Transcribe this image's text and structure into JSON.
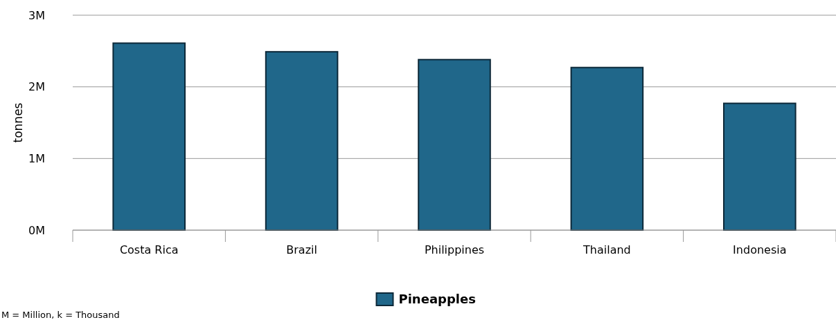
{
  "chart_data": {
    "type": "bar",
    "ylabel": "tonnes",
    "categories": [
      "Costa Rica",
      "Brazil",
      "Philippines",
      "Thailand",
      "Indonesia"
    ],
    "series": [
      {
        "name": "Pineapples",
        "color": "#20678a",
        "values": [
          2.61,
          2.49,
          2.38,
          2.27,
          1.77
        ]
      }
    ],
    "ylim": [
      0,
      3
    ],
    "yticks": [
      {
        "value": 0,
        "label": "0M"
      },
      {
        "value": 1,
        "label": "1M"
      },
      {
        "value": 2,
        "label": "2M"
      },
      {
        "value": 3,
        "label": "3M"
      }
    ],
    "grid": "y",
    "legend": "bottom",
    "annotations": [
      "M = Million, k = Thousand"
    ]
  }
}
